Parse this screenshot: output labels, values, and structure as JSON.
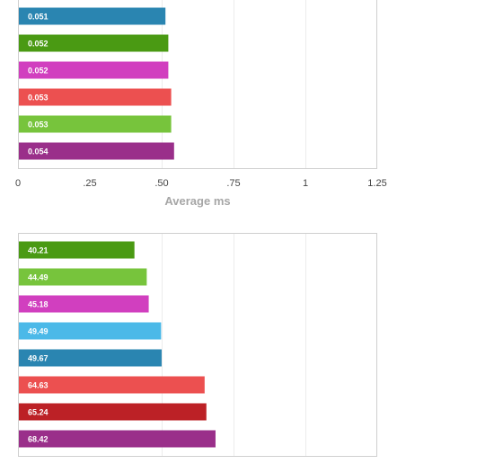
{
  "chart_data": [
    {
      "type": "bar",
      "orientation": "horizontal",
      "xlabel": "Average ms",
      "xlim": [
        0,
        1.25
      ],
      "ticks": [
        "0",
        ".25",
        ".50",
        ".75",
        "1",
        "1.25"
      ],
      "grid": true,
      "bars": [
        {
          "label": "0.051",
          "value": 0.051,
          "color": "#2a85b1"
        },
        {
          "label": "0.052",
          "value": 0.052,
          "color": "#4a9a13"
        },
        {
          "label": "0.052",
          "value": 0.052,
          "color": "#d13fbf"
        },
        {
          "label": "0.053",
          "value": 0.053,
          "color": "#ec5050"
        },
        {
          "label": "0.053",
          "value": 0.053,
          "color": "#77c43c"
        },
        {
          "label": "0.054",
          "value": 0.054,
          "color": "#9a2f8a"
        }
      ]
    },
    {
      "type": "bar",
      "orientation": "horizontal",
      "grid": true,
      "bars": [
        {
          "label": "40.21",
          "value": 40.21,
          "color": "#4a9a13"
        },
        {
          "label": "44.49",
          "value": 44.49,
          "color": "#77c43c"
        },
        {
          "label": "45.18",
          "value": 45.18,
          "color": "#d13fbf"
        },
        {
          "label": "49.49",
          "value": 49.49,
          "color": "#4bb9e8"
        },
        {
          "label": "49.67",
          "value": 49.67,
          "color": "#2a85b1"
        },
        {
          "label": "64.63",
          "value": 64.63,
          "color": "#ec5050"
        },
        {
          "label": "65.24",
          "value": 65.24,
          "color": "#bc2126"
        },
        {
          "label": "68.42",
          "value": 68.42,
          "color": "#9a2f8a"
        }
      ]
    }
  ]
}
